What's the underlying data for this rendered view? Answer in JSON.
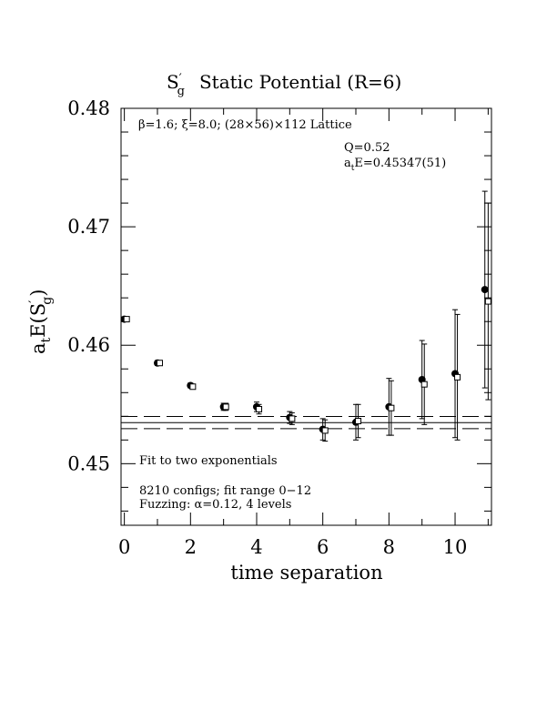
{
  "chart_data": {
    "type": "scatter",
    "title": {
      "symbol_main": "S",
      "symbol_prime": "′",
      "symbol_sub": "g",
      "text": "Static Potential (R=6)"
    },
    "xlabel": "time separation",
    "ylabel": {
      "prefix": "a",
      "prefix_sub": "t",
      "main": "E(S",
      "prime": "′",
      "sub": "g",
      "suffix": ")"
    },
    "xlim": [
      -0.1,
      11.1
    ],
    "ylim": [
      0.4448,
      0.48
    ],
    "x_ticks": [
      0,
      2,
      4,
      6,
      8,
      10
    ],
    "x_tick_labels": [
      "0",
      "2",
      "4",
      "6",
      "8",
      "10"
    ],
    "y_ticks": [
      0.45,
      0.46,
      0.47,
      0.48
    ],
    "y_tick_labels": [
      "0.45",
      "0.46",
      "0.47",
      "0.48"
    ],
    "x_minor_step": 1,
    "y_minor_step": 0.002,
    "annotations": {
      "lattice": "β=1.6; ξ=8.0; (28×56)×112 Lattice",
      "q": "Q=0.52",
      "energy_prefix": "a",
      "energy_sub": "t",
      "energy_rest": "E=0.45347(51)",
      "fit": "Fit to two exponentials",
      "configs": "8210 configs; fit range 0−12",
      "fuzzing": "Fuzzing: α=0.12, 4 levels"
    },
    "fit": {
      "center": 0.45347,
      "upper": 0.45398,
      "lower": 0.45296
    },
    "series": [
      {
        "marker": "filled-circle",
        "points": [
          {
            "x": 0,
            "y": 0.4622,
            "err": 0.0002
          },
          {
            "x": 1,
            "y": 0.4585,
            "err": 0.0002
          },
          {
            "x": 2,
            "y": 0.4566,
            "err": 0.0002
          },
          {
            "x": 3,
            "y": 0.4548,
            "err": 0.0003
          },
          {
            "x": 4,
            "y": 0.4548,
            "err": 0.0004
          },
          {
            "x": 5,
            "y": 0.4539,
            "err": 0.0005
          },
          {
            "x": 6,
            "y": 0.4529,
            "err": 0.0009
          },
          {
            "x": 7,
            "y": 0.4535,
            "err": 0.0015
          },
          {
            "x": 8,
            "y": 0.4548,
            "err": 0.0024
          },
          {
            "x": 9,
            "y": 0.4571,
            "err": 0.0033
          },
          {
            "x": 10,
            "y": 0.4576,
            "err": 0.0054
          },
          {
            "x": 10.9,
            "y": 0.4647,
            "err": 0.0083
          }
        ]
      },
      {
        "marker": "open-square",
        "points": [
          {
            "x": 0.07,
            "y": 0.4622,
            "err": 0.0002
          },
          {
            "x": 1.07,
            "y": 0.4585,
            "err": 0.0002
          },
          {
            "x": 2.07,
            "y": 0.4565,
            "err": 0.0002
          },
          {
            "x": 3.07,
            "y": 0.4548,
            "err": 0.0003
          },
          {
            "x": 4.07,
            "y": 0.4546,
            "err": 0.0004
          },
          {
            "x": 5.07,
            "y": 0.4538,
            "err": 0.0005
          },
          {
            "x": 6.07,
            "y": 0.4528,
            "err": 0.0009
          },
          {
            "x": 7.07,
            "y": 0.4536,
            "err": 0.0014
          },
          {
            "x": 8.07,
            "y": 0.4547,
            "err": 0.0023
          },
          {
            "x": 9.07,
            "y": 0.4567,
            "err": 0.0034
          },
          {
            "x": 10.07,
            "y": 0.4573,
            "err": 0.0053
          },
          {
            "x": 11.0,
            "y": 0.4637,
            "err": 0.0083
          }
        ]
      }
    ]
  }
}
